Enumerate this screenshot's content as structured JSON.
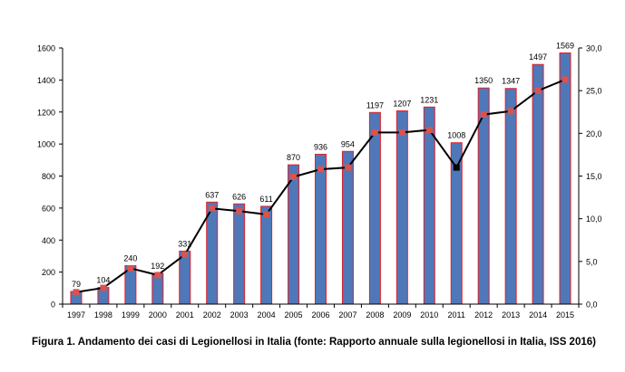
{
  "chart_data": {
    "type": "bar",
    "categories": [
      "1997",
      "1998",
      "1999",
      "2000",
      "2001",
      "2002",
      "2003",
      "2004",
      "2005",
      "2006",
      "2007",
      "2008",
      "2009",
      "2010",
      "2011",
      "2012",
      "2013",
      "2014",
      "2015"
    ],
    "series": [
      {
        "axis": "left",
        "type": "bar",
        "values": [
          79,
          104,
          240,
          192,
          331,
          637,
          626,
          611,
          870,
          936,
          954,
          1197,
          1207,
          1231,
          1008,
          1350,
          1347,
          1497,
          1569
        ]
      },
      {
        "axis": "right",
        "type": "line",
        "values": [
          1.4,
          1.9,
          4.2,
          3.4,
          5.8,
          11.2,
          10.9,
          10.5,
          14.9,
          15.8,
          16.0,
          20.1,
          20.1,
          20.4,
          16.0,
          22.2,
          22.6,
          25.0,
          26.3
        ]
      }
    ],
    "data_labels": [
      "79",
      "104",
      "240",
      "192",
      "331",
      "637",
      "626",
      "611",
      "870",
      "936",
      "954",
      "1197",
      "1207",
      "1231",
      "1008",
      "1350",
      "1347",
      "1497",
      "1569"
    ],
    "y_left": {
      "ylim": [
        0,
        1600
      ],
      "ticks": [
        "0",
        "200",
        "400",
        "600",
        "800",
        "1000",
        "1200",
        "1400",
        "1600"
      ]
    },
    "y_right": {
      "ylim": [
        0,
        30
      ],
      "ticks": [
        "0,0",
        "5,0",
        "10,0",
        "15,0",
        "20,0",
        "25,0",
        "30,0"
      ]
    },
    "grid": false,
    "legend": "none",
    "colors": {
      "bar_fill": "#4f78b8",
      "bar_edge": "#e0202a",
      "line": "#000000",
      "marker": "#d9534f",
      "marker_special": "#000000"
    },
    "marker_special_index": 14
  },
  "caption": "Figura 1. Andamento dei casi di Legionellosi in Italia (fonte: Rapporto annuale sulla legionellosi in Italia, ISS 2016)"
}
